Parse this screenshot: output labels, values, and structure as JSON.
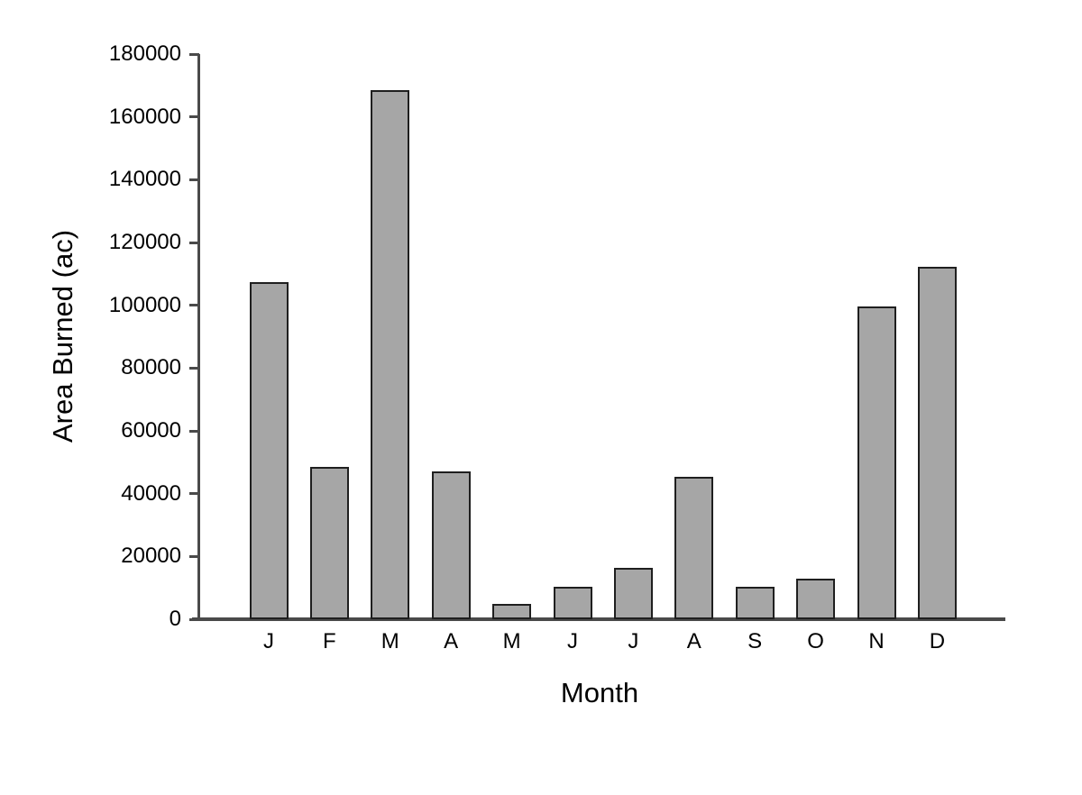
{
  "chart_data": {
    "type": "bar",
    "title": "",
    "xlabel": "Month",
    "ylabel": "Area Burned (ac)",
    "categories": [
      "J",
      "F",
      "M",
      "A",
      "M",
      "J",
      "J",
      "A",
      "S",
      "O",
      "N",
      "D"
    ],
    "values": [
      107500,
      48500,
      168500,
      47000,
      4800,
      10300,
      16500,
      45500,
      10400,
      13000,
      99500,
      112300
    ],
    "ylim": [
      0,
      180000
    ],
    "ytick_step": 20000,
    "ytick_labels": [
      "0",
      "20000",
      "40000",
      "60000",
      "80000",
      "100000",
      "120000",
      "140000",
      "160000",
      "180000"
    ],
    "grid": false,
    "legend": "none",
    "bar_fill": "#a6a6a6",
    "bar_border": "#1f1f1f",
    "axis_color": "#4a4a4a",
    "background": "#ffffff"
  }
}
